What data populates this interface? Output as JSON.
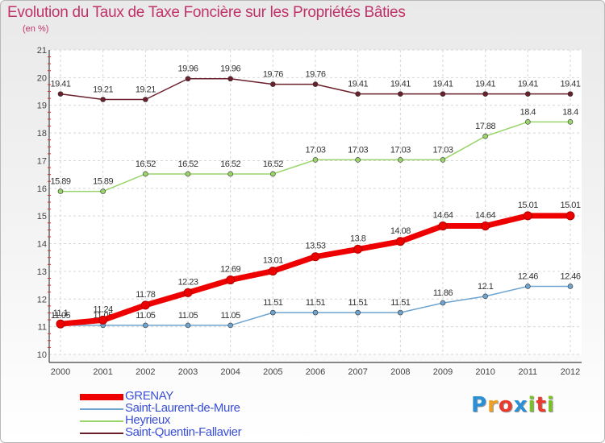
{
  "title": "Evolution du Taux de Taxe Foncière sur les Propriétés Bâties",
  "unit_label": "(en %)",
  "logo": {
    "letters": [
      "P",
      "r",
      "o",
      "x",
      "i",
      "t",
      "i"
    ],
    "colors": [
      "#2b8fd6",
      "#f0a020",
      "#e83a2e",
      "#2b8fd6",
      "#7bbf2a",
      "#e83a2e",
      "#7bbf2a"
    ]
  },
  "chart_data": {
    "type": "line",
    "x": [
      "2000",
      "2001",
      "2002",
      "2003",
      "2004",
      "2005",
      "2006",
      "2007",
      "2008",
      "2009",
      "2010",
      "2011",
      "2012"
    ],
    "ylim": [
      10,
      21
    ],
    "yticks": [
      "10",
      "11",
      "12",
      "13",
      "14",
      "15",
      "16",
      "17",
      "18",
      "19",
      "20",
      "21"
    ],
    "grid": true,
    "legend_position": "bottom-left",
    "series": [
      {
        "name": "Saint-Quentin-Fallavier",
        "color": "#6b1f2a",
        "values": [
          19.41,
          19.21,
          19.21,
          19.96,
          19.96,
          19.76,
          19.76,
          19.41,
          19.41,
          19.41,
          19.41,
          19.41,
          19.41
        ],
        "labels": [
          "19.41",
          "19.21",
          "19.21",
          "19.96",
          "19.96",
          "19.76",
          "19.76",
          "19.41",
          "19.41",
          "19.41",
          "19.41",
          "19.41",
          "19.41"
        ]
      },
      {
        "name": "Heyrieux",
        "color": "#9ad46a",
        "values": [
          15.89,
          15.89,
          16.52,
          16.52,
          16.52,
          16.52,
          17.03,
          17.03,
          17.03,
          17.03,
          17.88,
          18.4,
          18.4
        ],
        "labels": [
          "15.89",
          "15.89",
          "16.52",
          "16.52",
          "16.52",
          "16.52",
          "17.03",
          "17.03",
          "17.03",
          "17.03",
          "17.88",
          "18.4",
          "18.4"
        ]
      },
      {
        "name": "Saint-Laurent-de-Mure",
        "color": "#6ea4cf",
        "values": [
          11.05,
          11.05,
          11.05,
          11.05,
          11.05,
          11.51,
          11.51,
          11.51,
          11.51,
          11.86,
          12.1,
          12.46,
          12.46
        ],
        "labels": [
          "11.05",
          "11.05",
          "11.05",
          "11.05",
          "11.05",
          "11.51",
          "11.51",
          "11.51",
          "11.51",
          "11.86",
          "12.1",
          "12.46",
          "12.46"
        ]
      },
      {
        "name": "GRENAY",
        "color": "#ee0000",
        "values": [
          11.1,
          11.24,
          11.78,
          12.23,
          12.69,
          13.01,
          13.53,
          13.8,
          14.08,
          14.64,
          14.64,
          15.01,
          15.01
        ],
        "labels": [
          "11.1",
          "11.24",
          "11.78",
          "12.23",
          "12.69",
          "13.01",
          "13.53",
          "13.8",
          "14.08",
          "14.64",
          "14.64",
          "15.01",
          "15.01"
        ]
      }
    ],
    "legend_order": [
      "GRENAY",
      "Saint-Laurent-de-Mure",
      "Heyrieux",
      "Saint-Quentin-Fallavier"
    ]
  }
}
